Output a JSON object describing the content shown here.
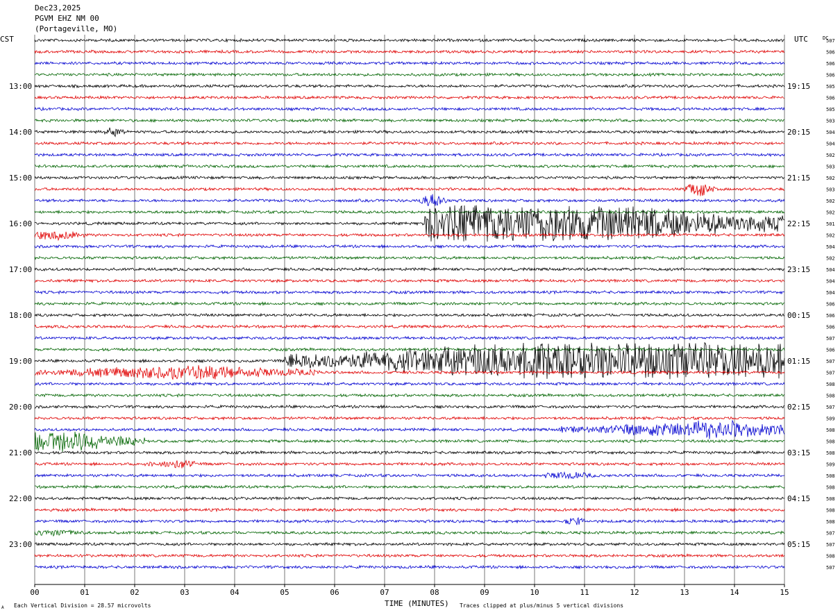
{
  "header": {
    "date": "Dec23,2025",
    "station": "PGVM EHZ NM 00",
    "location": "(Portageville, MO)"
  },
  "left_tz": "CST",
  "right_tz": "UTC",
  "dc_label": "DC",
  "footer": {
    "scale_note": "Each Vertical Division =   28.57 microvolts",
    "clip_note": "Traces clipped at plus/minus 5 vertical divisions",
    "corner_mark": "A"
  },
  "chart_data": {
    "type": "line",
    "title": "",
    "xlabel": "TIME (MINUTES)",
    "ylabel": "",
    "xlim": [
      0,
      15
    ],
    "x_ticks": [
      "00",
      "01",
      "02",
      "03",
      "04",
      "05",
      "06",
      "07",
      "08",
      "09",
      "10",
      "11",
      "12",
      "13",
      "14",
      "15"
    ],
    "grid": true,
    "trace_colors": [
      "#000000",
      "#e00000",
      "#0000d0",
      "#006400"
    ],
    "rows_per_hour": 4,
    "start_hour_cst": 12,
    "left_hour_labels": [
      "13:00",
      "14:00",
      "15:00",
      "16:00",
      "17:00",
      "18:00",
      "19:00",
      "20:00",
      "21:00",
      "22:00",
      "23:00"
    ],
    "right_hour_labels": [
      "19:15",
      "20:15",
      "21:15",
      "22:15",
      "23:15",
      "00:15",
      "01:15",
      "02:15",
      "03:15",
      "04:15",
      "05:15"
    ],
    "dc_offsets": [
      "507",
      "506",
      "506",
      "506",
      "505",
      "506",
      "505",
      "503",
      "504",
      "504",
      "502",
      "503",
      "502",
      "503",
      "502",
      "502",
      "501",
      "502",
      "504",
      "502",
      "504",
      "504",
      "504",
      "506",
      "506",
      "506",
      "507",
      "506",
      "507",
      "507",
      "508",
      "508",
      "507",
      "509",
      "508",
      "508",
      "508",
      "509",
      "508",
      "508",
      "508",
      "508",
      "508",
      "507",
      "507",
      "508",
      "507"
    ],
    "events": [
      {
        "row": 16,
        "start_min": 7.8,
        "end_min": 15.0,
        "peak_min": 9.6,
        "peak_amp": 5
      },
      {
        "row": 28,
        "start_min": 5.0,
        "end_min": 15.0,
        "peak_min": 12.5,
        "peak_amp": 5
      },
      {
        "row": 29,
        "start_min": 0.0,
        "end_min": 5.7,
        "peak_min": 3.0,
        "peak_amp": 1.2
      },
      {
        "row": 34,
        "start_min": 10.5,
        "end_min": 15.0,
        "peak_min": 13.5,
        "peak_amp": 1.5
      },
      {
        "row": 35,
        "start_min": 0.0,
        "end_min": 2.2,
        "peak_min": 0.4,
        "peak_amp": 2.2
      },
      {
        "row": 17,
        "start_min": 0.0,
        "end_min": 1.0,
        "peak_min": 0.4,
        "peak_amp": 0.9
      },
      {
        "row": 13,
        "start_min": 13.0,
        "end_min": 13.6,
        "peak_min": 13.3,
        "peak_amp": 1.6
      },
      {
        "row": 14,
        "start_min": 7.7,
        "end_min": 8.3,
        "peak_min": 8.0,
        "peak_amp": 1.5
      },
      {
        "row": 8,
        "start_min": 1.4,
        "end_min": 1.9,
        "peak_min": 1.6,
        "peak_amp": 0.7
      },
      {
        "row": 37,
        "start_min": 2.2,
        "end_min": 3.2,
        "peak_min": 2.9,
        "peak_amp": 0.7
      },
      {
        "row": 38,
        "start_min": 10.2,
        "end_min": 11.2,
        "peak_min": 10.6,
        "peak_amp": 0.6
      },
      {
        "row": 42,
        "start_min": 10.6,
        "end_min": 11.0,
        "peak_min": 10.8,
        "peak_amp": 0.6
      },
      {
        "row": 43,
        "start_min": 0.0,
        "end_min": 1.0,
        "peak_min": 0.4,
        "peak_amp": 0.5
      }
    ]
  }
}
